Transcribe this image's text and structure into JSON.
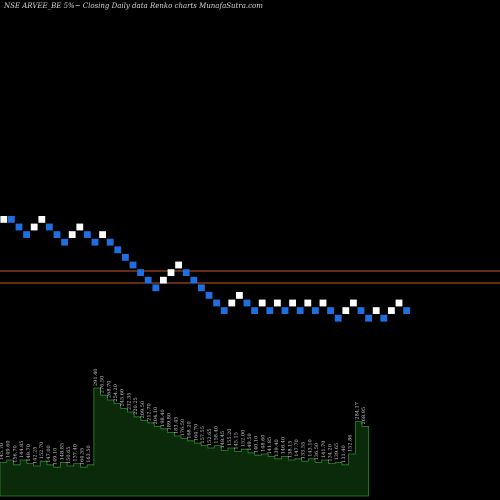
{
  "header": {
    "title": "NSE ARVEE_BE 5%~  Closing Daily data  Renko  charts MunafaSutra.com"
  },
  "colors": {
    "background": "#000000",
    "up_brick": "#ffffff",
    "down_brick": "#1f6fe0",
    "level_line": "#c85a22",
    "volume_fill": "#0a2a0a",
    "volume_stroke": "#2e8b2e"
  },
  "chart_data": {
    "type": "renko",
    "bricks": [
      {
        "i": 0,
        "level": 0,
        "dir": "up"
      },
      {
        "i": 1,
        "level": 0,
        "dir": "down"
      },
      {
        "i": 2,
        "level": -1,
        "dir": "down"
      },
      {
        "i": 3,
        "level": -2,
        "dir": "down"
      },
      {
        "i": 4,
        "level": -1,
        "dir": "up"
      },
      {
        "i": 5,
        "level": 0,
        "dir": "up"
      },
      {
        "i": 6,
        "level": -1,
        "dir": "down"
      },
      {
        "i": 7,
        "level": -2,
        "dir": "down"
      },
      {
        "i": 8,
        "level": -3,
        "dir": "down"
      },
      {
        "i": 9,
        "level": -2,
        "dir": "up"
      },
      {
        "i": 10,
        "level": -1,
        "dir": "up"
      },
      {
        "i": 11,
        "level": -2,
        "dir": "down"
      },
      {
        "i": 12,
        "level": -3,
        "dir": "down"
      },
      {
        "i": 13,
        "level": -2,
        "dir": "up"
      },
      {
        "i": 14,
        "level": -3,
        "dir": "down"
      },
      {
        "i": 15,
        "level": -4,
        "dir": "down"
      },
      {
        "i": 16,
        "level": -5,
        "dir": "down"
      },
      {
        "i": 17,
        "level": -6,
        "dir": "down"
      },
      {
        "i": 18,
        "level": -7,
        "dir": "down"
      },
      {
        "i": 19,
        "level": -8,
        "dir": "down"
      },
      {
        "i": 20,
        "level": -9,
        "dir": "down"
      },
      {
        "i": 21,
        "level": -8,
        "dir": "up"
      },
      {
        "i": 22,
        "level": -7,
        "dir": "up"
      },
      {
        "i": 23,
        "level": -6,
        "dir": "up"
      },
      {
        "i": 24,
        "level": -7,
        "dir": "down"
      },
      {
        "i": 25,
        "level": -8,
        "dir": "down"
      },
      {
        "i": 26,
        "level": -9,
        "dir": "down"
      },
      {
        "i": 27,
        "level": -10,
        "dir": "down"
      },
      {
        "i": 28,
        "level": -11,
        "dir": "down"
      },
      {
        "i": 29,
        "level": -12,
        "dir": "down"
      },
      {
        "i": 30,
        "level": -11,
        "dir": "up"
      },
      {
        "i": 31,
        "level": -10,
        "dir": "up"
      },
      {
        "i": 32,
        "level": -11,
        "dir": "down"
      },
      {
        "i": 33,
        "level": -12,
        "dir": "down"
      },
      {
        "i": 34,
        "level": -11,
        "dir": "up"
      },
      {
        "i": 35,
        "level": -12,
        "dir": "down"
      },
      {
        "i": 36,
        "level": -11,
        "dir": "up"
      },
      {
        "i": 37,
        "level": -12,
        "dir": "down"
      },
      {
        "i": 38,
        "level": -11,
        "dir": "up"
      },
      {
        "i": 39,
        "level": -12,
        "dir": "down"
      },
      {
        "i": 40,
        "level": -11,
        "dir": "up"
      },
      {
        "i": 41,
        "level": -12,
        "dir": "down"
      },
      {
        "i": 42,
        "level": -11,
        "dir": "up"
      },
      {
        "i": 43,
        "level": -12,
        "dir": "down"
      },
      {
        "i": 44,
        "level": -13,
        "dir": "down"
      },
      {
        "i": 45,
        "level": -12,
        "dir": "up"
      },
      {
        "i": 46,
        "level": -11,
        "dir": "up"
      },
      {
        "i": 47,
        "level": -12,
        "dir": "down"
      },
      {
        "i": 48,
        "level": -13,
        "dir": "down"
      },
      {
        "i": 49,
        "level": -12,
        "dir": "up"
      },
      {
        "i": 50,
        "level": -13,
        "dir": "down"
      },
      {
        "i": 51,
        "level": -12,
        "dir": "up"
      },
      {
        "i": 52,
        "level": -11,
        "dir": "up"
      },
      {
        "i": 53,
        "level": -12,
        "dir": "down"
      }
    ],
    "level_lines": [
      "upper",
      "lower"
    ],
    "volume": {
      "values": [
        0.28,
        0.3,
        0.26,
        0.3,
        0.27,
        0.25,
        0.29,
        0.26,
        0.24,
        0.28,
        0.25,
        0.27,
        0.24,
        0.26,
        0.9,
        0.84,
        0.8,
        0.77,
        0.73,
        0.7,
        0.66,
        0.63,
        0.61,
        0.58,
        0.56,
        0.53,
        0.5,
        0.48,
        0.46,
        0.44,
        0.42,
        0.4,
        0.42,
        0.38,
        0.4,
        0.37,
        0.39,
        0.36,
        0.34,
        0.35,
        0.33,
        0.31,
        0.33,
        0.3,
        0.31,
        0.29,
        0.31,
        0.28,
        0.3,
        0.27,
        0.28,
        0.26,
        0.35,
        0.62,
        0.58
      ],
      "labels": [
        "145.70",
        "149.60",
        "156.70",
        "144.85",
        "149.70",
        "142.25",
        "152.70",
        "147.00",
        "149.10",
        "148.85",
        "150.65",
        "137.40",
        "164.35",
        "163.50",
        "291.40",
        "276.50",
        "268.70",
        "254.20",
        "245.60",
        "232.35",
        "220.25",
        "209.50",
        "212.70",
        "204.10",
        "198.40",
        "189.80",
        "183.45",
        "176.50",
        "168.20",
        "164.70",
        "157.55",
        "152.65",
        "158.40",
        "148.45",
        "155.20",
        "145.15",
        "152.00",
        "149.50",
        "140.10",
        "148.60",
        "141.85",
        "139.40",
        "146.40",
        "138.15",
        "147.70",
        "133.55",
        "143.10",
        "136.50",
        "141.70",
        "134.20",
        "139.65",
        "131.40",
        "152.86",
        "284.17",
        "268.95"
      ]
    }
  }
}
